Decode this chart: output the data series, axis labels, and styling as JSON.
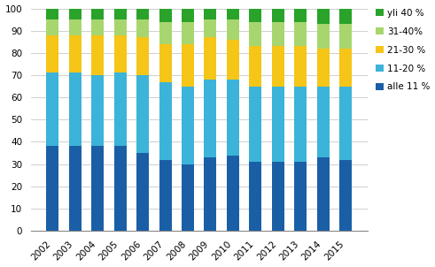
{
  "years": [
    2002,
    2003,
    2004,
    2005,
    2006,
    2007,
    2008,
    2009,
    2010,
    2011,
    2012,
    2013,
    2014,
    2015
  ],
  "alle11": [
    38,
    38,
    38,
    38,
    35,
    32,
    30,
    33,
    34,
    31,
    31,
    31,
    33,
    32
  ],
  "from11to20": [
    33,
    33,
    32,
    33,
    35,
    35,
    35,
    35,
    34,
    34,
    34,
    34,
    32,
    33
  ],
  "from21to30": [
    17,
    17,
    18,
    17,
    17,
    17,
    19,
    19,
    18,
    18,
    18,
    18,
    17,
    17
  ],
  "from31to40": [
    7,
    7,
    7,
    7,
    8,
    10,
    10,
    8,
    9,
    11,
    11,
    11,
    11,
    11
  ],
  "yli40": [
    5,
    5,
    5,
    5,
    5,
    6,
    6,
    5,
    5,
    6,
    6,
    6,
    7,
    7
  ],
  "colors": {
    "alle11": "#1a5fa6",
    "from11to20": "#3cb3d8",
    "from21to30": "#f5c518",
    "from31to40": "#a8d66e",
    "yli40": "#29a329"
  },
  "legend_labels": [
    "yli 40 %",
    "31-40%",
    "21-30 %",
    "11-20 %",
    "alle 11 %"
  ],
  "ylim": [
    0,
    100
  ],
  "yticks": [
    0,
    10,
    20,
    30,
    40,
    50,
    60,
    70,
    80,
    90,
    100
  ],
  "background_color": "#ffffff",
  "bar_width": 0.55,
  "figsize": [
    4.91,
    3.02
  ],
  "dpi": 100
}
